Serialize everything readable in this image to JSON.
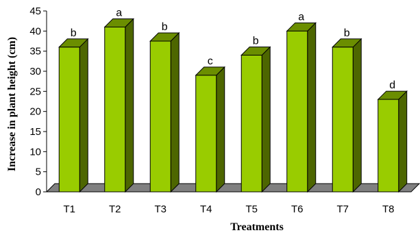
{
  "chart_data": {
    "type": "bar",
    "style": "3d",
    "categories": [
      "T1",
      "T2",
      "T3",
      "T4",
      "T5",
      "T6",
      "T7",
      "T8"
    ],
    "values": [
      36,
      41,
      37.5,
      29,
      34,
      40,
      36,
      23
    ],
    "significance_labels": [
      "b",
      "a",
      "b",
      "c",
      "b",
      "a",
      "b",
      "d"
    ],
    "xlabel": "Treatments",
    "ylabel": "Increase in plant height (cm)",
    "ylim": [
      0,
      45
    ],
    "yticks": [
      "0",
      "5",
      "10",
      "15",
      "20",
      "25",
      "30",
      "35",
      "40",
      "45"
    ],
    "grid": false,
    "legend": "none",
    "colors": {
      "bar_front": "#99cc00",
      "bar_side": "#4d6600",
      "bar_top": "#6b8e00",
      "floor": "#808080"
    }
  }
}
